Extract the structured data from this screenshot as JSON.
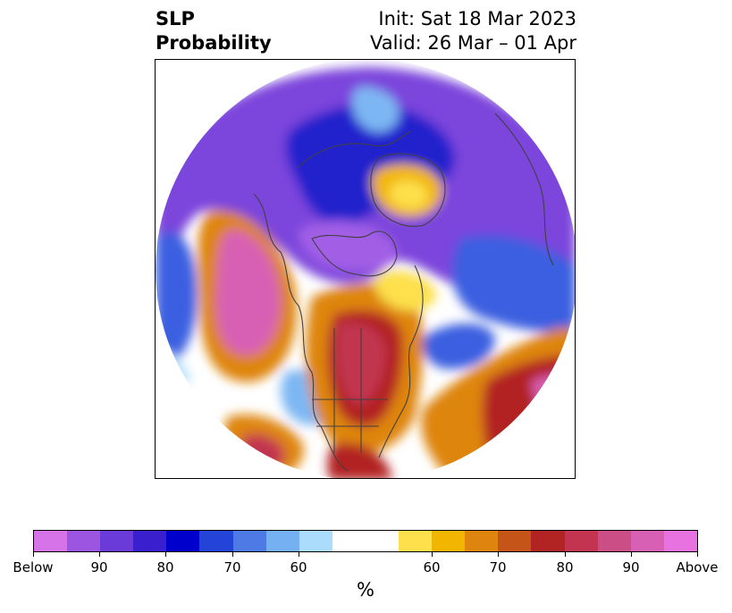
{
  "title": {
    "left_line1": "SLP",
    "left_line2": "Probability",
    "init": "Init: Sat 18 Mar 2023",
    "valid": "Valid: 26 Mar – 01 Apr"
  },
  "colorbar": {
    "label": "%",
    "below_colors": [
      "#d673e8",
      "#9c55e0",
      "#6a3bd8",
      "#3a1fcf",
      "#0000cc",
      "#2444d8",
      "#4e7ae6",
      "#74b0f2",
      "#acdcfb"
    ],
    "neutral_color": "#ffffff",
    "above_colors": [
      "#fde04c",
      "#f2b600",
      "#de8510",
      "#c45418",
      "#b22424",
      "#c23450",
      "#cc4e86",
      "#d860b4",
      "#e873e0"
    ],
    "tick_labels": [
      "Below",
      "90",
      "80",
      "70",
      "60",
      "60",
      "70",
      "80",
      "90",
      "Above"
    ]
  },
  "map_colors": {
    "purple": "#7b45dc",
    "violet": "#a25ee6",
    "magenta_light": "#d673e8",
    "deep_blue": "#2020cc",
    "blue": "#3a5fe0",
    "light_blue": "#7db7f3",
    "pale_blue": "#b8e2fb",
    "yellow": "#fde04c",
    "gold": "#f2b600",
    "orange": "#de8510",
    "red": "#b22424",
    "rose": "#c23450",
    "pink": "#d860b4",
    "pink_light": "#e873e0",
    "coast": "#404040"
  }
}
